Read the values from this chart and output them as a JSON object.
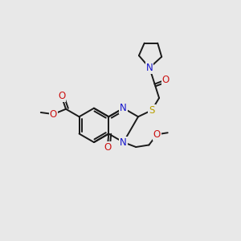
{
  "bg": "#e8e8e8",
  "bond_color": "#1a1a1a",
  "bond_lw": 1.4,
  "atom_colors": {
    "N": "#1414cc",
    "O": "#cc1414",
    "S": "#b8a000",
    "C": "#1a1a1a"
  },
  "fs": 8.0,
  "dbl_off": 0.1
}
